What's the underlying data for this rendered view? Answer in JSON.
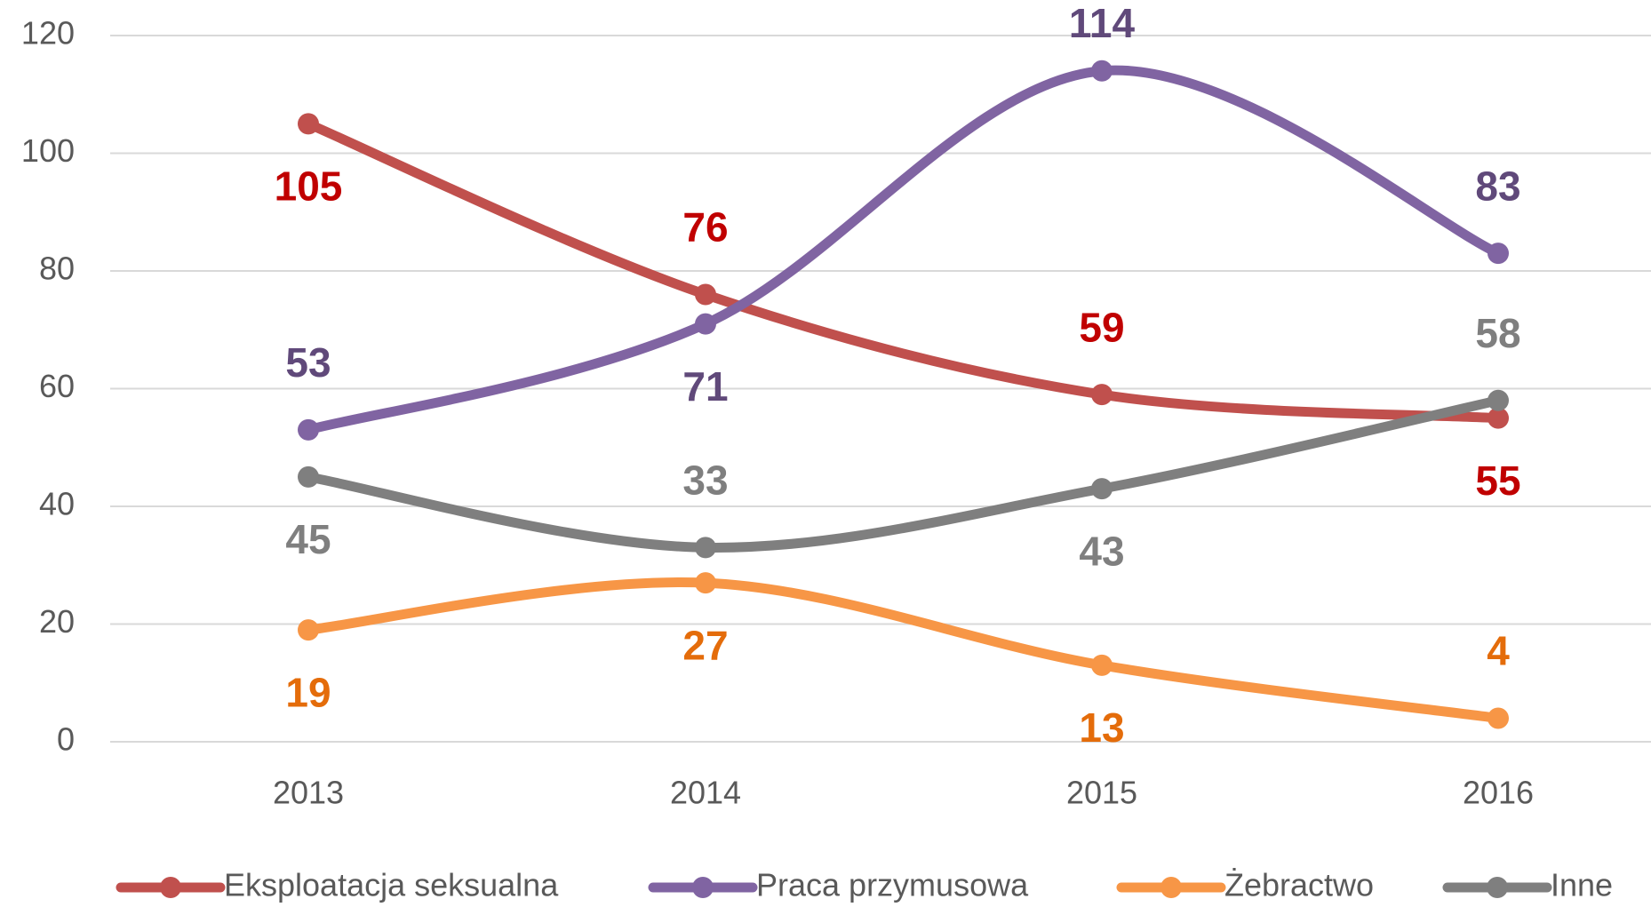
{
  "chart_data": {
    "type": "line",
    "categories": [
      "2013",
      "2014",
      "2015",
      "2016"
    ],
    "series": [
      {
        "name": "Eksploatacja seksualna",
        "color": "#c0504d",
        "label_color": "#c00000",
        "values": [
          105,
          76,
          59,
          55
        ]
      },
      {
        "name": "Praca przymusowa",
        "color": "#8064a2",
        "label_color": "#60497a",
        "values": [
          53,
          71,
          114,
          83
        ]
      },
      {
        "name": "Żebractwo",
        "color": "#f79646",
        "label_color": "#e46c0a",
        "values": [
          19,
          27,
          13,
          4
        ]
      },
      {
        "name": "Inne",
        "color": "#7f7f7f",
        "label_color": "#7f7f7f",
        "values": [
          45,
          33,
          43,
          58
        ]
      }
    ],
    "ylim": [
      0,
      120
    ],
    "yticks": [
      0,
      20,
      40,
      60,
      80,
      100,
      120
    ],
    "grid": true,
    "smooth": true,
    "legend": "bottom"
  }
}
